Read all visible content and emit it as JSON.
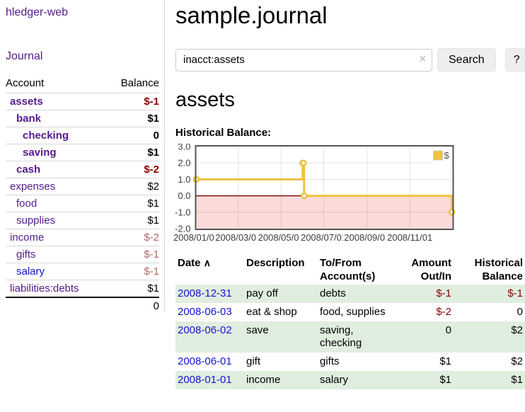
{
  "app": {
    "title": "hledger-web",
    "nav": {
      "journal": "Journal"
    }
  },
  "sidebar": {
    "table_headers": {
      "account": "Account",
      "balance": "Balance"
    },
    "accounts": [
      {
        "name": "assets",
        "indent": 1,
        "balance": "$-1",
        "bold": true,
        "neg": "strong"
      },
      {
        "name": "bank",
        "indent": 2,
        "balance": "$1",
        "bold": true
      },
      {
        "name": "checking",
        "indent": 3,
        "balance": "0",
        "bold": true
      },
      {
        "name": "saving",
        "indent": 3,
        "balance": "$1",
        "bold": true
      },
      {
        "name": "cash",
        "indent": 2,
        "balance": "$-2",
        "bold": true,
        "neg": "strong"
      },
      {
        "name": "expenses",
        "indent": 1,
        "balance": "$2"
      },
      {
        "name": "food",
        "indent": 2,
        "balance": "$1"
      },
      {
        "name": "supplies",
        "indent": 2,
        "balance": "$1"
      },
      {
        "name": "income",
        "indent": 1,
        "balance": "$-2",
        "neg": "soft"
      },
      {
        "name": "gifts",
        "indent": 2,
        "balance": "$-1",
        "neg": "soft"
      },
      {
        "name": "salary",
        "indent": 2,
        "balance": "$-1",
        "neg": "soft",
        "blue": true
      },
      {
        "name": "liabilities:debts",
        "indent": 1,
        "balance": "$1"
      }
    ],
    "total": "0"
  },
  "header": {
    "title": "sample.journal"
  },
  "search": {
    "value": "inacct:assets",
    "clear_icon": "×",
    "search_button": "Search",
    "help_button": "?"
  },
  "account_page": {
    "title": "assets",
    "section_label": "Historical Balance:"
  },
  "chart_data": {
    "type": "line",
    "step": true,
    "series": [
      {
        "name": "$",
        "color": "#edc240",
        "points": [
          [
            "2008-01-01",
            1
          ],
          [
            "2008-06-01",
            2
          ],
          [
            "2008-06-02",
            2
          ],
          [
            "2008-06-03",
            0
          ],
          [
            "2008-12-31",
            -1
          ]
        ]
      }
    ],
    "title": "Historical Balance",
    "xlabel": "",
    "ylabel": "",
    "xlim": [
      "2008-01-01",
      "2009-01-01"
    ],
    "ylim": [
      -2,
      3
    ],
    "x_ticks": [
      "2008/01/01",
      "2008/03/01",
      "2008/05/01",
      "2008/07/01",
      "2008/09/01",
      "2008/11/01"
    ],
    "y_ticks": [
      3.0,
      2.0,
      1.0,
      0.0,
      -1.0,
      -2.0
    ],
    "grid": true,
    "legend": {
      "label": "$",
      "position": "top-right"
    },
    "negative_region_fill": "#fcdada",
    "zero_line_color": "#8b1a1a"
  },
  "register": {
    "headers": {
      "date": "Date",
      "sort_icon": "∧",
      "description": "Description",
      "accounts": "To/From Account(s)",
      "amount": "Amount Out/In",
      "balance": "Historical Balance"
    },
    "rows": [
      {
        "date": "2008-12-31",
        "description": "pay off",
        "accounts": "debts",
        "amount": "$-1",
        "balance": "$-1"
      },
      {
        "date": "2008-06-03",
        "description": "eat & shop",
        "accounts": "food, supplies",
        "amount": "$-2",
        "balance": "0"
      },
      {
        "date": "2008-06-02",
        "description": "save",
        "accounts": "saving, checking",
        "amount": "0",
        "balance": "$2"
      },
      {
        "date": "2008-06-01",
        "description": "gift",
        "accounts": "gifts",
        "amount": "$1",
        "balance": "$2"
      },
      {
        "date": "2008-01-01",
        "description": "income",
        "accounts": "salary",
        "amount": "$1",
        "balance": "$1"
      }
    ]
  },
  "colors": {
    "link_purple": "#551a8b",
    "link_blue": "#1414cc",
    "negative_strong": "#8b0000",
    "negative_soft": "#b36a6a",
    "row_stripe_green": "#e0eee0",
    "chart_line": "#edc240",
    "chart_negative_fill": "#fcdada",
    "chart_zero_line": "#8b1a1a",
    "button_bg": "#eeeeee"
  }
}
